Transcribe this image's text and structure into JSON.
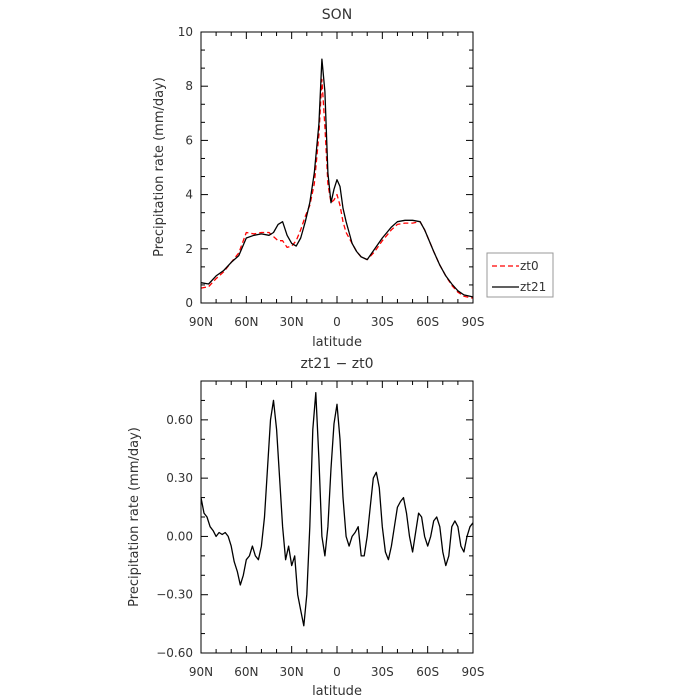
{
  "chart_data": [
    {
      "type": "line",
      "title": "SON",
      "xlabel": "latitude",
      "ylabel": "Precipitation rate (mm/day)",
      "x_ticks": [
        "90N",
        "60N",
        "30N",
        "0",
        "30S",
        "60S",
        "90S"
      ],
      "x_tick_values": [
        90,
        60,
        30,
        0,
        -30,
        -60,
        -90
      ],
      "xlim": [
        90,
        -90
      ],
      "ylim": [
        0,
        10
      ],
      "y_ticks": [
        "0",
        "2",
        "4",
        "6",
        "8",
        "10"
      ],
      "y_tick_values": [
        0,
        2,
        4,
        6,
        8,
        10
      ],
      "legend_position": "right, outside plot",
      "series": [
        {
          "name": "zt0",
          "color": "#ff0000",
          "style": "dashed",
          "x": [
            90,
            85,
            80,
            75,
            70,
            65,
            60,
            55,
            50,
            45,
            42,
            39,
            36,
            33,
            30,
            27,
            24,
            21,
            18,
            15,
            12,
            10,
            8,
            6,
            4,
            2,
            0,
            -2,
            -4,
            -6,
            -8,
            -10,
            -13,
            -16,
            -20,
            -25,
            -30,
            -33,
            -36,
            -40,
            -45,
            -50,
            -55,
            -58,
            -61,
            -64,
            -68,
            -72,
            -76,
            -80,
            -84,
            -88,
            -90
          ],
          "y": [
            0.55,
            0.6,
            0.9,
            1.15,
            1.5,
            1.85,
            2.6,
            2.55,
            2.6,
            2.6,
            2.45,
            2.3,
            2.3,
            2.05,
            2.1,
            2.3,
            2.7,
            3.2,
            3.6,
            4.4,
            6.2,
            8.25,
            6.5,
            4.4,
            3.7,
            3.8,
            4.0,
            3.6,
            3.0,
            2.6,
            2.4,
            2.2,
            1.9,
            1.7,
            1.6,
            1.9,
            2.3,
            2.5,
            2.7,
            2.9,
            2.95,
            2.95,
            3.0,
            2.7,
            2.3,
            1.9,
            1.4,
            1.0,
            0.65,
            0.4,
            0.25,
            0.2,
            0.18
          ]
        },
        {
          "name": "zt21",
          "color": "#000000",
          "style": "solid",
          "x": [
            90,
            85,
            80,
            75,
            70,
            65,
            60,
            55,
            50,
            45,
            42,
            39,
            36,
            33,
            30,
            27,
            24,
            21,
            18,
            15,
            12,
            10,
            8,
            6,
            4,
            2,
            0,
            -2,
            -4,
            -6,
            -8,
            -10,
            -13,
            -16,
            -20,
            -25,
            -30,
            -33,
            -36,
            -40,
            -45,
            -50,
            -55,
            -58,
            -61,
            -64,
            -68,
            -72,
            -76,
            -80,
            -84,
            -88,
            -90
          ],
          "y": [
            0.75,
            0.7,
            1.0,
            1.2,
            1.5,
            1.75,
            2.4,
            2.5,
            2.55,
            2.5,
            2.6,
            2.9,
            3.0,
            2.5,
            2.2,
            2.1,
            2.4,
            3.0,
            3.7,
            4.8,
            6.6,
            9.0,
            7.8,
            4.8,
            3.7,
            4.2,
            4.55,
            4.3,
            3.5,
            3.0,
            2.6,
            2.2,
            1.9,
            1.7,
            1.6,
            2.0,
            2.4,
            2.6,
            2.8,
            3.0,
            3.05,
            3.05,
            3.0,
            2.7,
            2.3,
            1.9,
            1.4,
            1.0,
            0.7,
            0.45,
            0.3,
            0.25,
            0.22
          ]
        }
      ]
    },
    {
      "type": "line",
      "title": "zt21 − zt0",
      "xlabel": "latitude",
      "ylabel": "Precipitation rate (mm/day)",
      "x_ticks": [
        "90N",
        "60N",
        "30N",
        "0",
        "30S",
        "60S",
        "90S"
      ],
      "x_tick_values": [
        90,
        60,
        30,
        0,
        -30,
        -60,
        -90
      ],
      "xlim": [
        90,
        -90
      ],
      "ylim": [
        -0.6,
        0.8
      ],
      "y_ticks": [
        "−0.60",
        "−0.30",
        "0.00",
        "0.30",
        "0.60"
      ],
      "y_tick_values": [
        -0.6,
        -0.3,
        0.0,
        0.3,
        0.6
      ],
      "series": [
        {
          "name": "",
          "color": "#000000",
          "style": "solid",
          "x": [
            90,
            88,
            86,
            84,
            82,
            80,
            78,
            76,
            74,
            72,
            70,
            68,
            66,
            64,
            62,
            60,
            58,
            56,
            54,
            52,
            50,
            48,
            46,
            44,
            42,
            40,
            38,
            36,
            34,
            32,
            30,
            28,
            26,
            24,
            22,
            20,
            18,
            16,
            14,
            12,
            10,
            8,
            6,
            4,
            2,
            0,
            -2,
            -4,
            -6,
            -8,
            -10,
            -12,
            -14,
            -16,
            -18,
            -20,
            -22,
            -24,
            -26,
            -28,
            -30,
            -32,
            -34,
            -36,
            -38,
            -40,
            -42,
            -44,
            -46,
            -48,
            -50,
            -52,
            -54,
            -56,
            -58,
            -60,
            -62,
            -64,
            -66,
            -68,
            -70,
            -72,
            -74,
            -76,
            -78,
            -80,
            -82,
            -84,
            -86,
            -88,
            -90
          ],
          "y": [
            0.2,
            0.12,
            0.1,
            0.05,
            0.03,
            0.0,
            0.02,
            0.01,
            0.02,
            0.0,
            -0.05,
            -0.13,
            -0.18,
            -0.25,
            -0.2,
            -0.12,
            -0.1,
            -0.05,
            -0.1,
            -0.12,
            -0.05,
            0.1,
            0.35,
            0.6,
            0.7,
            0.55,
            0.3,
            0.05,
            -0.12,
            -0.05,
            -0.15,
            -0.1,
            -0.3,
            -0.38,
            -0.46,
            -0.3,
            0.05,
            0.55,
            0.74,
            0.4,
            0.0,
            -0.1,
            0.05,
            0.35,
            0.58,
            0.68,
            0.5,
            0.2,
            0.0,
            -0.05,
            0.0,
            0.02,
            0.05,
            -0.1,
            -0.1,
            0.0,
            0.15,
            0.3,
            0.33,
            0.25,
            0.05,
            -0.08,
            -0.12,
            -0.05,
            0.05,
            0.15,
            0.18,
            0.2,
            0.12,
            0.0,
            -0.08,
            0.02,
            0.12,
            0.1,
            0.0,
            -0.05,
            0.0,
            0.08,
            0.1,
            0.05,
            -0.08,
            -0.15,
            -0.1,
            0.05,
            0.08,
            0.05,
            -0.05,
            -0.08,
            0.0,
            0.05,
            0.07
          ]
        }
      ]
    }
  ]
}
